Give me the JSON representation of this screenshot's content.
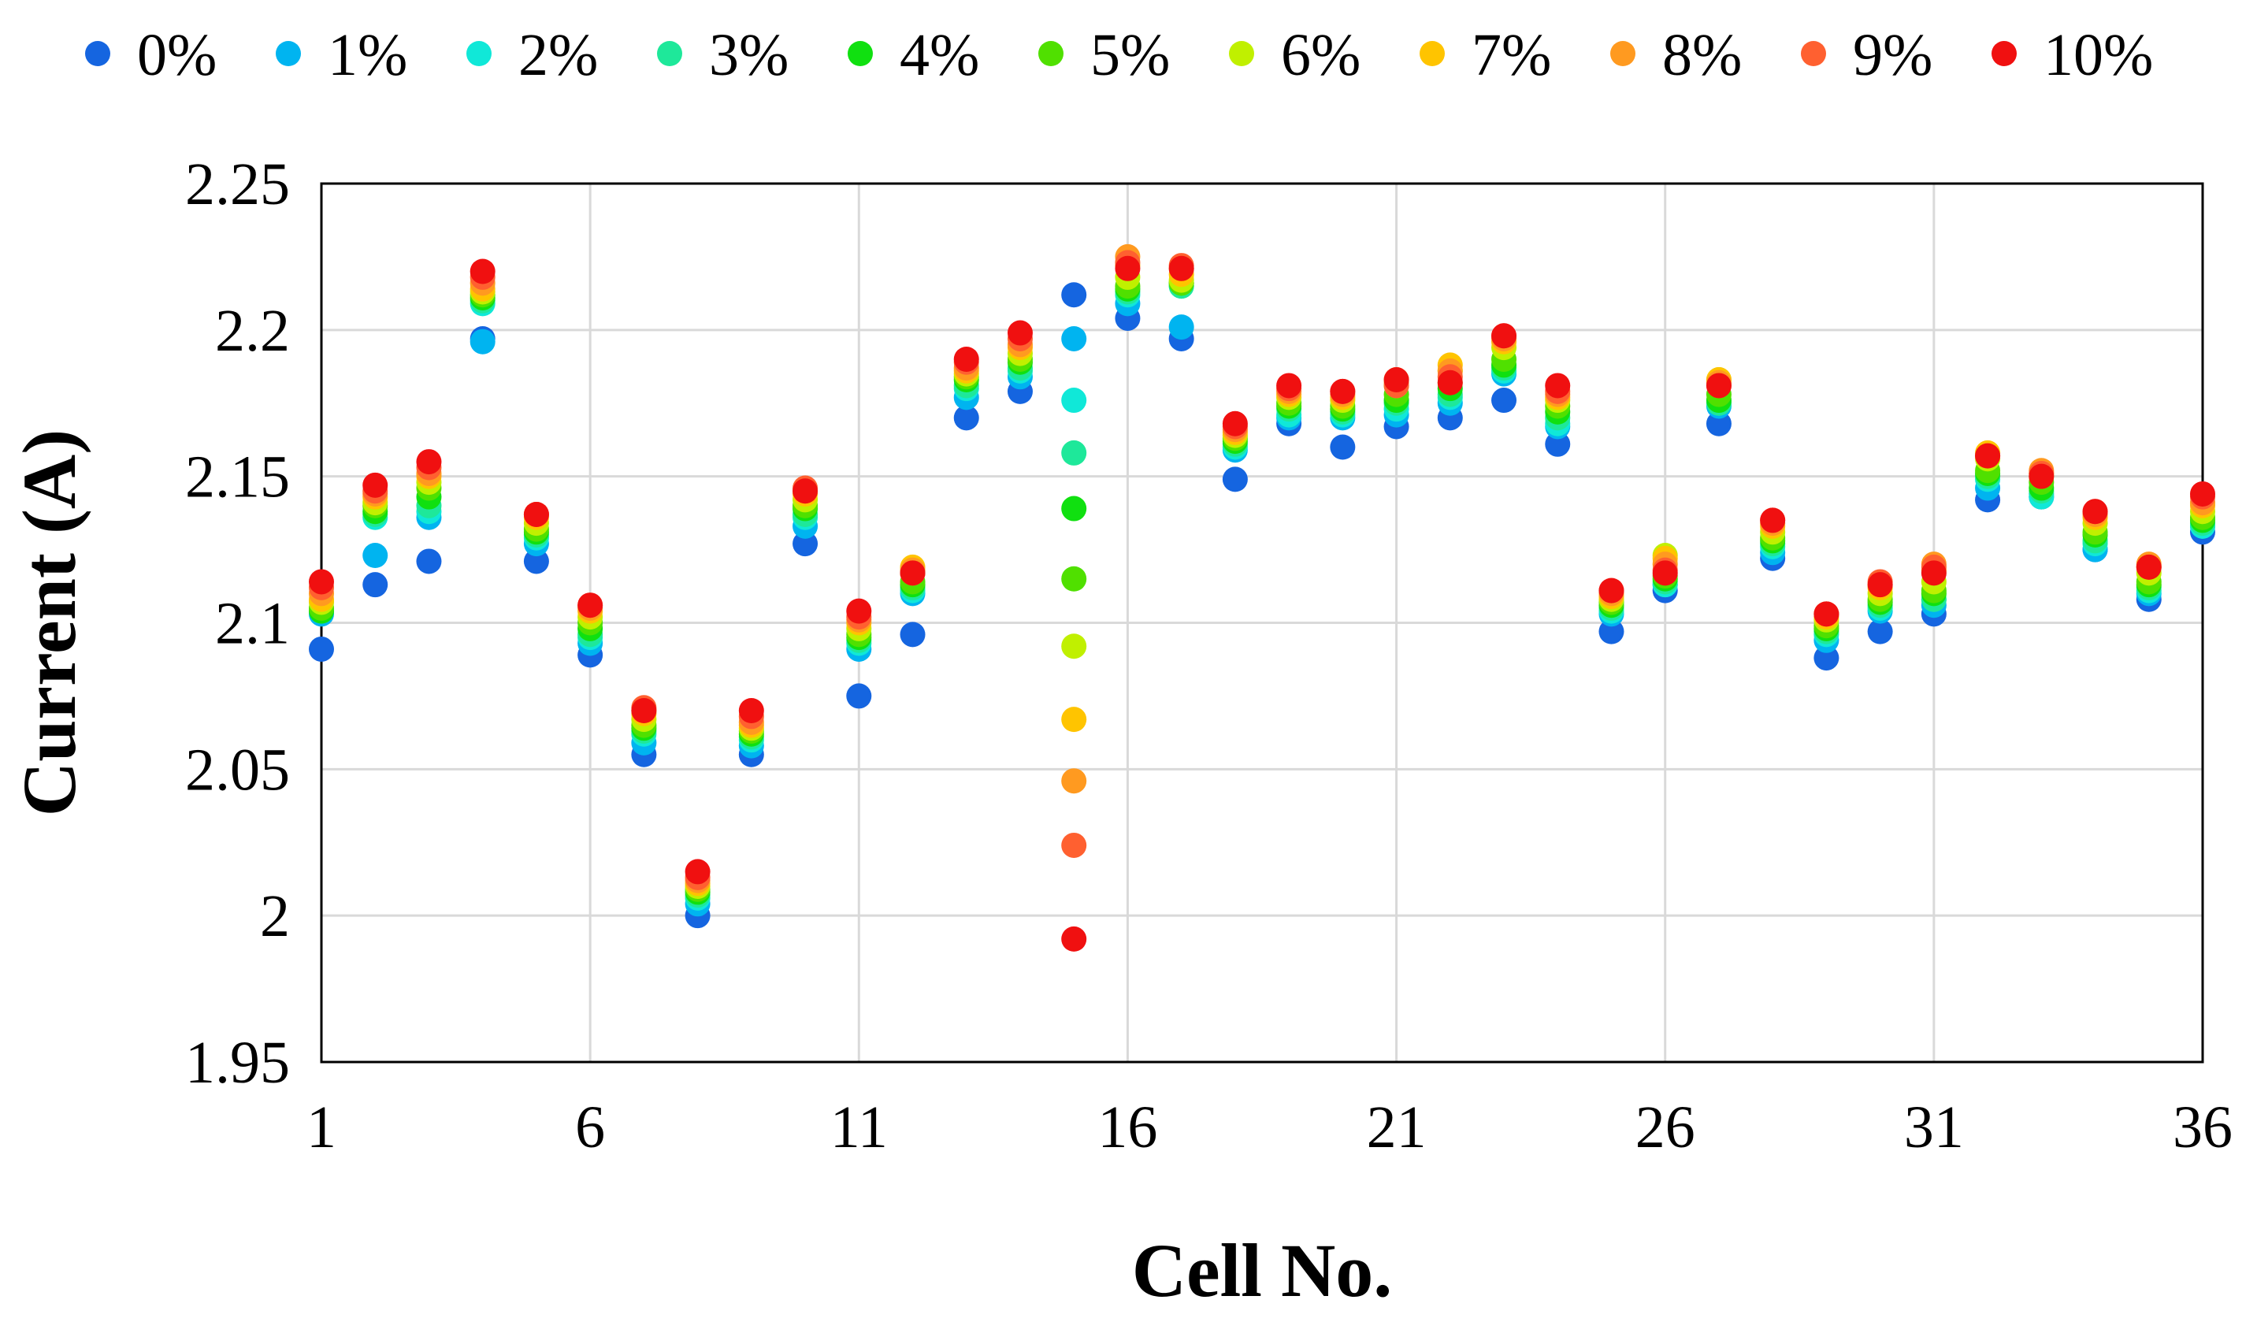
{
  "chart_data": {
    "type": "scatter",
    "xlabel": "Cell No.",
    "ylabel": "Current (A)",
    "xlim": [
      1,
      36
    ],
    "ylim": [
      1.95,
      2.25
    ],
    "xticks": [
      "1",
      "6",
      "11",
      "16",
      "21",
      "26",
      "31",
      "36"
    ],
    "yticks": [
      "1.95",
      "2",
      "2.05",
      "2.1",
      "2.15",
      "2.2",
      "2.25"
    ],
    "grid": true,
    "legend_position": "top",
    "x": [
      1,
      2,
      3,
      4,
      5,
      6,
      7,
      8,
      9,
      10,
      11,
      12,
      13,
      14,
      15,
      16,
      17,
      18,
      19,
      20,
      21,
      22,
      23,
      24,
      25,
      26,
      27,
      28,
      29,
      30,
      31,
      32,
      33,
      34,
      35,
      36
    ],
    "series": [
      {
        "name": "0%",
        "color": "#1565e0",
        "values": [
          2.091,
          2.113,
          2.121,
          2.197,
          2.121,
          2.089,
          2.055,
          2.0,
          2.055,
          2.127,
          2.075,
          2.096,
          2.17,
          2.179,
          2.212,
          2.204,
          2.197,
          2.149,
          2.168,
          2.16,
          2.167,
          2.17,
          2.176,
          2.161,
          2.097,
          2.111,
          2.168,
          2.122,
          2.088,
          2.097,
          2.103,
          2.142,
          2.143,
          2.125,
          2.108,
          2.131
        ]
      },
      {
        "name": "1%",
        "color": "#00b4f0",
        "values": [
          2.103,
          2.123,
          2.136,
          2.196,
          2.127,
          2.093,
          2.059,
          2.004,
          2.058,
          2.133,
          2.091,
          2.11,
          2.177,
          2.184,
          2.197,
          2.209,
          2.201,
          2.159,
          2.17,
          2.17,
          2.171,
          2.175,
          2.185,
          2.167,
          2.103,
          2.113,
          2.174,
          2.124,
          2.094,
          2.104,
          2.106,
          2.146,
          2.144,
          2.125,
          2.11,
          2.133
        ]
      },
      {
        "name": "2%",
        "color": "#10e8d8",
        "values": [
          2.104,
          2.136,
          2.138,
          2.209,
          2.129,
          2.095,
          2.062,
          2.006,
          2.06,
          2.136,
          2.093,
          2.111,
          2.18,
          2.186,
          2.176,
          2.212,
          2.215,
          2.16,
          2.171,
          2.171,
          2.173,
          2.177,
          2.186,
          2.168,
          2.104,
          2.113,
          2.175,
          2.126,
          2.096,
          2.105,
          2.108,
          2.149,
          2.143,
          2.127,
          2.111,
          2.133
        ]
      },
      {
        "name": "3%",
        "color": "#1ee89a",
        "values": [
          2.104,
          2.137,
          2.14,
          2.21,
          2.13,
          2.096,
          2.063,
          2.007,
          2.061,
          2.137,
          2.094,
          2.112,
          2.181,
          2.187,
          2.158,
          2.213,
          2.215,
          2.161,
          2.173,
          2.172,
          2.175,
          2.178,
          2.187,
          2.17,
          2.105,
          2.114,
          2.175,
          2.127,
          2.097,
          2.106,
          2.108,
          2.15,
          2.145,
          2.128,
          2.112,
          2.134
        ]
      },
      {
        "name": "4%",
        "color": "#10e010",
        "values": [
          2.104,
          2.138,
          2.143,
          2.211,
          2.131,
          2.098,
          2.064,
          2.008,
          2.062,
          2.139,
          2.095,
          2.113,
          2.183,
          2.189,
          2.139,
          2.214,
          2.216,
          2.162,
          2.174,
          2.173,
          2.176,
          2.18,
          2.188,
          2.172,
          2.106,
          2.115,
          2.176,
          2.128,
          2.098,
          2.107,
          2.11,
          2.151,
          2.146,
          2.13,
          2.113,
          2.135
        ]
      },
      {
        "name": "5%",
        "color": "#50e000",
        "values": [
          2.105,
          2.14,
          2.146,
          2.212,
          2.132,
          2.1,
          2.065,
          2.009,
          2.063,
          2.14,
          2.096,
          2.114,
          2.184,
          2.19,
          2.115,
          2.215,
          2.216,
          2.163,
          2.175,
          2.174,
          2.178,
          2.182,
          2.19,
          2.174,
          2.107,
          2.116,
          2.178,
          2.129,
          2.099,
          2.108,
          2.111,
          2.152,
          2.148,
          2.131,
          2.114,
          2.136
        ]
      },
      {
        "name": "6%",
        "color": "#c0f000",
        "values": [
          2.107,
          2.141,
          2.148,
          2.213,
          2.134,
          2.102,
          2.067,
          2.01,
          2.064,
          2.142,
          2.098,
          2.117,
          2.185,
          2.192,
          2.092,
          2.218,
          2.217,
          2.164,
          2.177,
          2.176,
          2.181,
          2.186,
          2.194,
          2.176,
          2.108,
          2.123,
          2.183,
          2.131,
          2.101,
          2.11,
          2.114,
          2.156,
          2.15,
          2.134,
          2.117,
          2.138
        ]
      },
      {
        "name": "7%",
        "color": "#ffc400",
        "values": [
          2.108,
          2.143,
          2.15,
          2.214,
          2.136,
          2.104,
          2.069,
          2.011,
          2.065,
          2.144,
          2.1,
          2.119,
          2.186,
          2.194,
          2.067,
          2.222,
          2.219,
          2.165,
          2.178,
          2.177,
          2.183,
          2.188,
          2.196,
          2.177,
          2.109,
          2.122,
          2.183,
          2.133,
          2.102,
          2.112,
          2.118,
          2.158,
          2.151,
          2.136,
          2.119,
          2.14
        ]
      },
      {
        "name": "8%",
        "color": "#ff9a20",
        "values": [
          2.11,
          2.144,
          2.151,
          2.216,
          2.137,
          2.105,
          2.07,
          2.012,
          2.066,
          2.145,
          2.101,
          2.118,
          2.187,
          2.195,
          2.046,
          2.225,
          2.221,
          2.166,
          2.179,
          2.178,
          2.182,
          2.186,
          2.197,
          2.178,
          2.11,
          2.12,
          2.182,
          2.134,
          2.103,
          2.113,
          2.12,
          2.157,
          2.152,
          2.137,
          2.12,
          2.141
        ]
      },
      {
        "name": "9%",
        "color": "#ff6030",
        "values": [
          2.112,
          2.145,
          2.153,
          2.218,
          2.137,
          2.106,
          2.071,
          2.013,
          2.068,
          2.146,
          2.102,
          2.117,
          2.189,
          2.197,
          2.024,
          2.223,
          2.222,
          2.167,
          2.18,
          2.179,
          2.181,
          2.184,
          2.198,
          2.179,
          2.111,
          2.118,
          2.181,
          2.135,
          2.103,
          2.114,
          2.119,
          2.157,
          2.151,
          2.138,
          2.119,
          2.143
        ]
      },
      {
        "name": "10%",
        "color": "#f01010",
        "values": [
          2.114,
          2.147,
          2.155,
          2.22,
          2.137,
          2.106,
          2.07,
          2.015,
          2.07,
          2.145,
          2.104,
          2.117,
          2.19,
          2.199,
          1.992,
          2.221,
          2.221,
          2.168,
          2.181,
          2.179,
          2.183,
          2.182,
          2.198,
          2.181,
          2.111,
          2.117,
          2.181,
          2.135,
          2.103,
          2.113,
          2.117,
          2.157,
          2.15,
          2.138,
          2.119,
          2.144
        ]
      }
    ]
  }
}
